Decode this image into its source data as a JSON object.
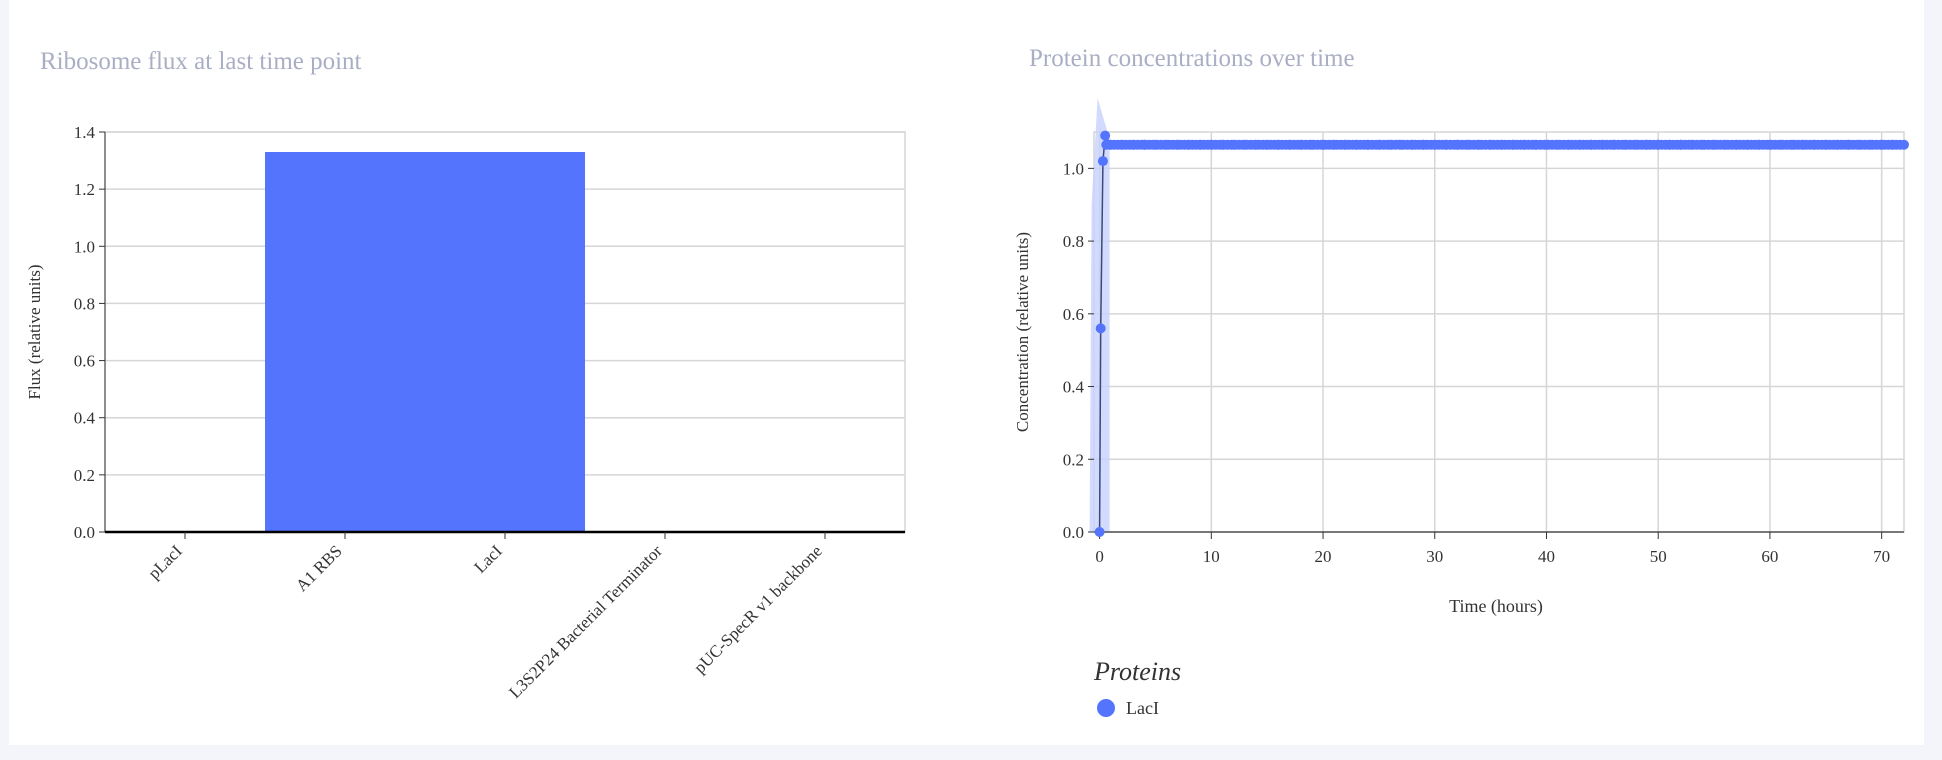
{
  "colors": {
    "bar": "#5474fe",
    "series": "#5474fe",
    "band": "#c7d2fc",
    "grid": "#d6d6d6",
    "axis": "#000000",
    "title": "#a9aec4"
  },
  "chart_data": [
    {
      "type": "bar",
      "title": "Ribosome flux at last time point",
      "xlabel": "",
      "ylabel": "Flux (relative units)",
      "categories": [
        "pLacI",
        "A1 RBS",
        "LacI",
        "L3S2P24 Bacterial Terminator",
        "pUC-SpecR v1 backbone"
      ],
      "values": [
        0,
        1.33,
        1.33,
        0,
        0
      ],
      "ylim": [
        0,
        1.4
      ],
      "yticks": [
        "0.0",
        "0.2",
        "0.4",
        "0.6",
        "0.8",
        "1.0",
        "1.2",
        "1.4"
      ],
      "grid": true
    },
    {
      "type": "line",
      "title": "Protein concentrations over time",
      "xlabel": "Time (hours)",
      "ylabel": "Concentration (relative units)",
      "xlim": [
        -0.5,
        72
      ],
      "ylim": [
        0,
        1.1
      ],
      "xticks": [
        "0",
        "10",
        "20",
        "30",
        "40",
        "50",
        "60",
        "70"
      ],
      "yticks": [
        "0.0",
        "0.2",
        "0.4",
        "0.6",
        "0.8",
        "1.0"
      ],
      "grid": true,
      "legend": {
        "title": "Proteins",
        "placement": "bottom-left"
      },
      "series": [
        {
          "name": "LacI",
          "x": [
            0,
            0.1,
            0.3,
            0.5,
            1,
            2,
            3,
            4,
            5,
            6,
            7,
            8,
            9,
            10,
            11,
            12,
            13,
            14,
            15,
            16,
            17,
            18,
            19,
            20,
            21,
            22,
            23,
            24,
            25,
            26,
            27,
            28,
            29,
            30,
            31,
            32,
            33,
            34,
            35,
            36,
            37,
            38,
            39,
            40,
            41,
            42,
            43,
            44,
            45,
            46,
            47,
            48,
            49,
            50,
            51,
            52,
            53,
            54,
            55,
            56,
            57,
            58,
            59,
            60,
            61,
            62,
            63,
            64,
            65,
            66,
            67,
            68,
            69,
            70,
            71,
            72
          ],
          "y": [
            0,
            0.56,
            1.02,
            1.09,
            1.065,
            1.065,
            1.065,
            1.065,
            1.065,
            1.065,
            1.065,
            1.065,
            1.065,
            1.065,
            1.065,
            1.065,
            1.065,
            1.065,
            1.065,
            1.065,
            1.065,
            1.065,
            1.065,
            1.065,
            1.065,
            1.065,
            1.065,
            1.065,
            1.065,
            1.065,
            1.065,
            1.065,
            1.065,
            1.065,
            1.065,
            1.065,
            1.065,
            1.065,
            1.065,
            1.065,
            1.065,
            1.065,
            1.065,
            1.065,
            1.065,
            1.065,
            1.065,
            1.065,
            1.065,
            1.065,
            1.065,
            1.065,
            1.065,
            1.065,
            1.065,
            1.065,
            1.065,
            1.065,
            1.065,
            1.065,
            1.065,
            1.065,
            1.065,
            1.065,
            1.065,
            1.065,
            1.065,
            1.065,
            1.065,
            1.065,
            1.065,
            1.065,
            1.065,
            1.065,
            1.065,
            1.065
          ]
        }
      ]
    }
  ]
}
